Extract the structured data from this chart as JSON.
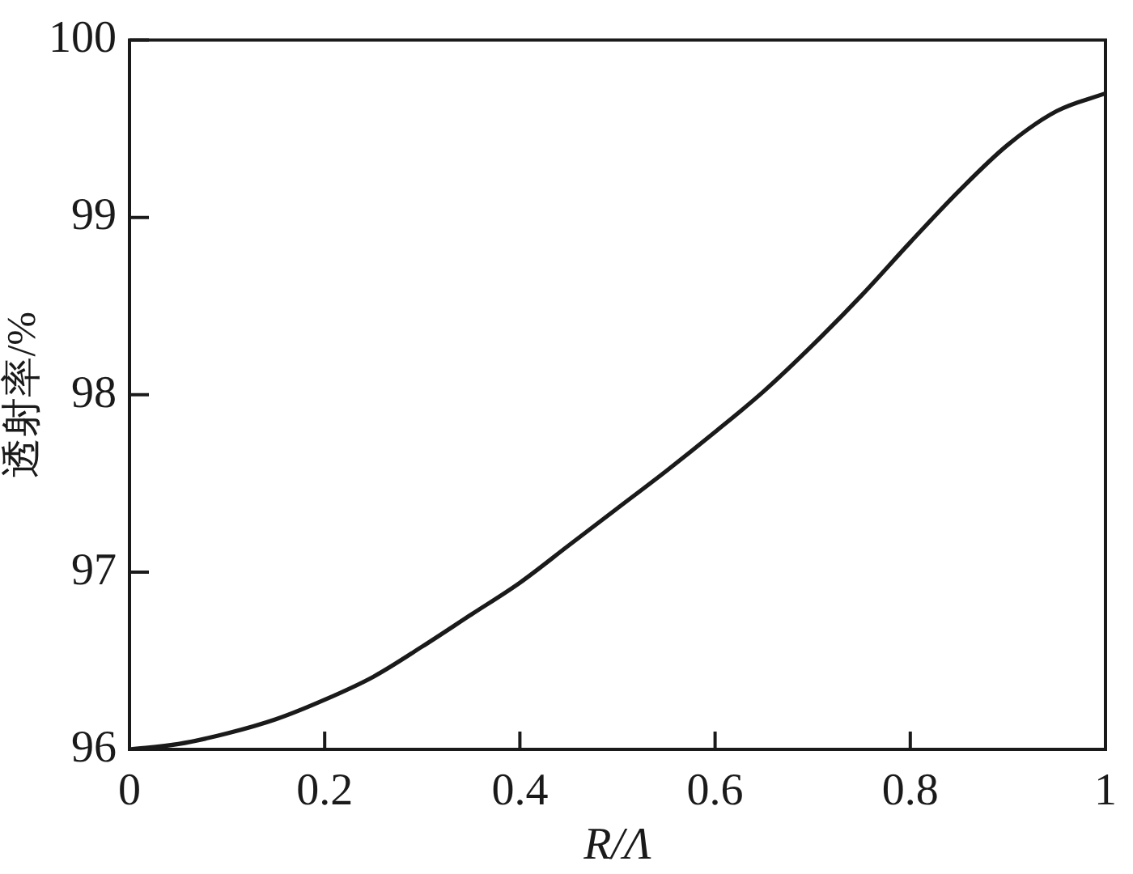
{
  "chart_data": {
    "type": "line",
    "xlabel": "R/Λ",
    "ylabel": "透射率/%",
    "x": [
      0,
      0.05,
      0.1,
      0.15,
      0.2,
      0.25,
      0.3,
      0.35,
      0.4,
      0.45,
      0.5,
      0.55,
      0.6,
      0.65,
      0.7,
      0.75,
      0.8,
      0.85,
      0.9,
      0.95,
      1
    ],
    "values": [
      96.0,
      96.03,
      96.09,
      96.17,
      96.28,
      96.41,
      96.58,
      96.76,
      96.94,
      97.15,
      97.36,
      97.57,
      97.79,
      98.02,
      98.28,
      98.56,
      98.86,
      99.15,
      99.41,
      99.6,
      99.7
    ],
    "color": "#1a1a1a",
    "xlim": [
      0,
      1
    ],
    "ylim": [
      96,
      100
    ],
    "xticks": [
      0,
      0.2,
      0.4,
      0.6,
      0.8,
      1
    ],
    "yticks": [
      96,
      97,
      98,
      99,
      100
    ],
    "marker": "none",
    "line_style": "solid",
    "legend": false,
    "grid": false
  }
}
